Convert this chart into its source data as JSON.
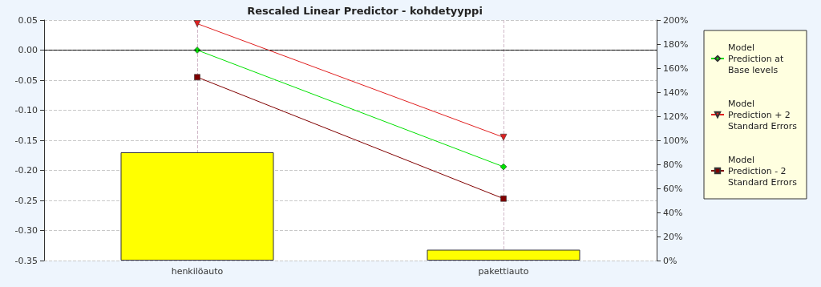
{
  "chart_data": {
    "type": "line",
    "title": "Rescaled Linear Predictor - kohdetyyppi",
    "categories": [
      "henkilöauto",
      "pakettiauto"
    ],
    "series": [
      {
        "type": "bar",
        "axis": "y2",
        "color": "#ffff00",
        "values": [
          90,
          9
        ]
      },
      {
        "name": "Model Prediction at Base levels",
        "color": "#00e000",
        "marker": "diamond",
        "values": [
          0.0,
          -0.194
        ]
      },
      {
        "name": "Model Prediction + 2 Standard Errors",
        "color": "#e02020",
        "marker": "triangle",
        "values": [
          0.044,
          -0.145
        ]
      },
      {
        "name": "Model Prediction - 2 Standard Errors",
        "color": "#800000",
        "marker": "square",
        "values": [
          -0.045,
          -0.247
        ]
      }
    ],
    "ylim": [
      -0.35,
      0.05
    ],
    "yticks": [
      {
        "value": -0.35,
        "label": "-0.35"
      },
      {
        "value": -0.3,
        "label": "-0.30"
      },
      {
        "value": -0.25,
        "label": "-0.25"
      },
      {
        "value": -0.2,
        "label": "-0.20"
      },
      {
        "value": -0.15,
        "label": "-0.15"
      },
      {
        "value": -0.1,
        "label": "-0.10"
      },
      {
        "value": -0.05,
        "label": "-0.05"
      },
      {
        "value": 0,
        "label": "0.00"
      },
      {
        "value": 0.05,
        "label": "0.05"
      }
    ],
    "y2lim": [
      0,
      200
    ],
    "y2ticks": [
      {
        "value": 0,
        "label": "0%"
      },
      {
        "value": 20,
        "label": "20%"
      },
      {
        "value": 40,
        "label": "40%"
      },
      {
        "value": 60,
        "label": "60%"
      },
      {
        "value": 80,
        "label": "80%"
      },
      {
        "value": 100,
        "label": "100%"
      },
      {
        "value": 120,
        "label": "120%"
      },
      {
        "value": 140,
        "label": "140%"
      },
      {
        "value": 160,
        "label": "160%"
      },
      {
        "value": 180,
        "label": "180%"
      },
      {
        "value": 200,
        "label": "200%"
      }
    ],
    "ref_lines": [
      {
        "axis": "y",
        "value": 0,
        "color": "#000000",
        "line_style": "dashed"
      }
    ],
    "grid": true,
    "legend": "right"
  }
}
